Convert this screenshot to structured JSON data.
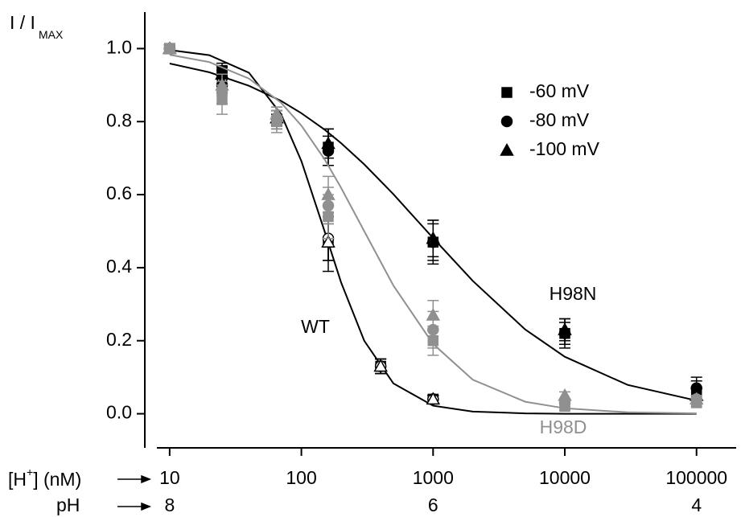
{
  "chart_data": {
    "type": "dose-response",
    "y_label_parts": [
      "I / I",
      "MAX"
    ],
    "x_label_parts": [
      "[H",
      "+",
      "] (nM)"
    ],
    "x2_label": "pH",
    "log_x": true,
    "xlim": [
      8,
      200000
    ],
    "xticks": [
      10,
      100,
      1000,
      10000,
      100000
    ],
    "x2ticks": [
      {
        "value": 10,
        "label": "8"
      },
      {
        "value": 1000,
        "label": "6"
      },
      {
        "value": 100000,
        "label": "4"
      }
    ],
    "ylim": [
      -0.1,
      1.1
    ],
    "yticks": [
      {
        "value": 0,
        "label": "0.0"
      },
      0.2,
      0.4,
      0.6,
      0.8,
      {
        "value": 1,
        "label": "1.0"
      }
    ],
    "legend": [
      {
        "name": "-60 mV",
        "marker": "square"
      },
      {
        "name": "-80 mV",
        "marker": "circle"
      },
      {
        "name": "-100 mV",
        "marker": "triangle"
      }
    ],
    "legend_position": "upper right",
    "fit_x": [
      10,
      20,
      40,
      70,
      100,
      150,
      200,
      300,
      500,
      1000,
      2000,
      5000,
      10000,
      30000,
      100000
    ],
    "groups": [
      {
        "name": "WT",
        "color": "#000000",
        "fill": "#ffffff",
        "x": [
          10,
          25,
          65,
          160,
          400,
          1000
        ],
        "series": [
          {
            "values": [
              1.0,
              0.93,
              0.8,
              0.47,
              0.13,
              0.04
            ],
            "errors": [
              0.01,
              0.02,
              0.02,
              0.08,
              0.02,
              0.01
            ]
          },
          {
            "values": [
              1.0,
              0.92,
              0.81,
              0.48,
              0.13,
              0.04
            ],
            "errors": [
              0.01,
              0.02,
              0.02,
              0.06,
              0.02,
              0.01
            ]
          },
          {
            "values": [
              1.0,
              0.93,
              0.81,
              0.47,
              0.13,
              0.04
            ],
            "errors": [
              0.01,
              0.02,
              0.02,
              0.05,
              0.02,
              0.01
            ]
          }
        ],
        "fit": [
          0.996,
          0.982,
          0.934,
          0.821,
          0.692,
          0.5,
          0.36,
          0.2,
          0.083,
          0.022,
          0.006,
          0.001,
          0,
          0,
          0
        ]
      },
      {
        "name": "H98N",
        "color": "#000000",
        "fill": "#000000",
        "x": [
          10,
          25,
          160,
          1000,
          10000,
          100000
        ],
        "series": [
          {
            "values": [
              1.0,
              0.94,
              0.73,
              0.47,
              0.22,
              0.06
            ],
            "errors": [
              0.01,
              0.02,
              0.05,
              0.06,
              0.04,
              0.03
            ]
          },
          {
            "values": [
              1.0,
              0.9,
              0.72,
              0.47,
              0.22,
              0.07
            ],
            "errors": [
              0.01,
              0.02,
              0.04,
              0.05,
              0.03,
              0.03
            ]
          },
          {
            "values": [
              1.0,
              0.93,
              0.74,
              0.48,
              0.23,
              0.05
            ],
            "errors": [
              0.01,
              0.02,
              0.04,
              0.05,
              0.03,
              0.02
            ]
          }
        ],
        "fit": [
          0.959,
          0.935,
          0.898,
          0.857,
          0.823,
          0.778,
          0.741,
          0.683,
          0.601,
          0.481,
          0.364,
          0.231,
          0.156,
          0.079,
          0.036
        ]
      },
      {
        "name": "H98D",
        "color": "#909090",
        "fill": "#909090",
        "x": [
          10,
          25,
          65,
          160,
          1000,
          10000,
          100000
        ],
        "series": [
          {
            "values": [
              1.0,
              0.86,
              0.8,
              0.54,
              0.2,
              0.02,
              0.03
            ],
            "errors": [
              0.01,
              0.04,
              0.03,
              0.06,
              0.04,
              0.01,
              0.01
            ]
          },
          {
            "values": [
              1.0,
              0.88,
              0.81,
              0.57,
              0.23,
              0.03,
              0.04
            ],
            "errors": [
              0.01,
              0.03,
              0.03,
              0.05,
              0.05,
              0.01,
              0.01
            ]
          },
          {
            "values": [
              1.0,
              0.9,
              0.82,
              0.6,
              0.27,
              0.05,
              0.04
            ],
            "errors": [
              0.01,
              0.03,
              0.02,
              0.05,
              0.04,
              0.01,
              0.01
            ]
          }
        ],
        "fit": [
          0.983,
          0.963,
          0.918,
          0.852,
          0.789,
          0.697,
          0.619,
          0.5,
          0.351,
          0.191,
          0.093,
          0.033,
          0.015,
          0.004,
          0.001
        ]
      }
    ]
  }
}
